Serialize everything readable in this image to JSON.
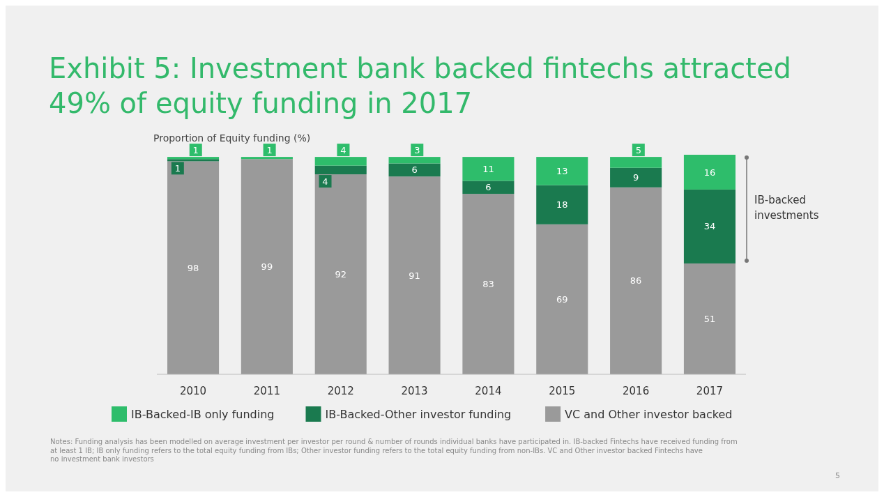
{
  "chart_data": {
    "type": "bar",
    "stacked": true,
    "title": "Exhibit 5: Investment bank backed fintechs attracted 49% of equity funding in 2017",
    "ylabel": "Proportion of Equity funding (%)",
    "categories": [
      "2010",
      "2011",
      "2012",
      "2013",
      "2014",
      "2015",
      "2016",
      "2017"
    ],
    "ylim": [
      0,
      101
    ],
    "series": [
      {
        "name": "VC and Other investor backed",
        "color": "#9a9a9a",
        "values": [
          98,
          99,
          92,
          91,
          83,
          69,
          86,
          51
        ],
        "value_labels": [
          "98",
          "99",
          "92",
          "91",
          "83",
          "69",
          "86",
          "51"
        ]
      },
      {
        "name": "IB-Backed-Other investor funding",
        "color": "#1a7a4f",
        "values": [
          1,
          0,
          4,
          6,
          6,
          18,
          9,
          34
        ],
        "value_labels": [
          "1",
          null,
          "4",
          "6",
          "6",
          "18",
          "9",
          "34"
        ]
      },
      {
        "name": "IB-Backed-IB only funding",
        "color": "#2ebd6b",
        "values": [
          1,
          1,
          4,
          3,
          11,
          13,
          5,
          16
        ],
        "value_labels": [
          "1",
          "1",
          "4",
          "3",
          "11",
          "13",
          "5",
          "16"
        ]
      }
    ],
    "legend": "bottom",
    "annotations": [
      "IB-backed investments",
      "Notes: Funding analysis has been modelled on average investment per investor per round & number of rounds individual banks have participated in. IB-backed Fintechs have received funding from at least 1 IB; IB only funding refers to the total equity funding from IBs; Other investor funding refers to the total equity funding from non-IBs. VC and Other investor backed Fintechs have no investment bank investors",
      "5"
    ]
  }
}
